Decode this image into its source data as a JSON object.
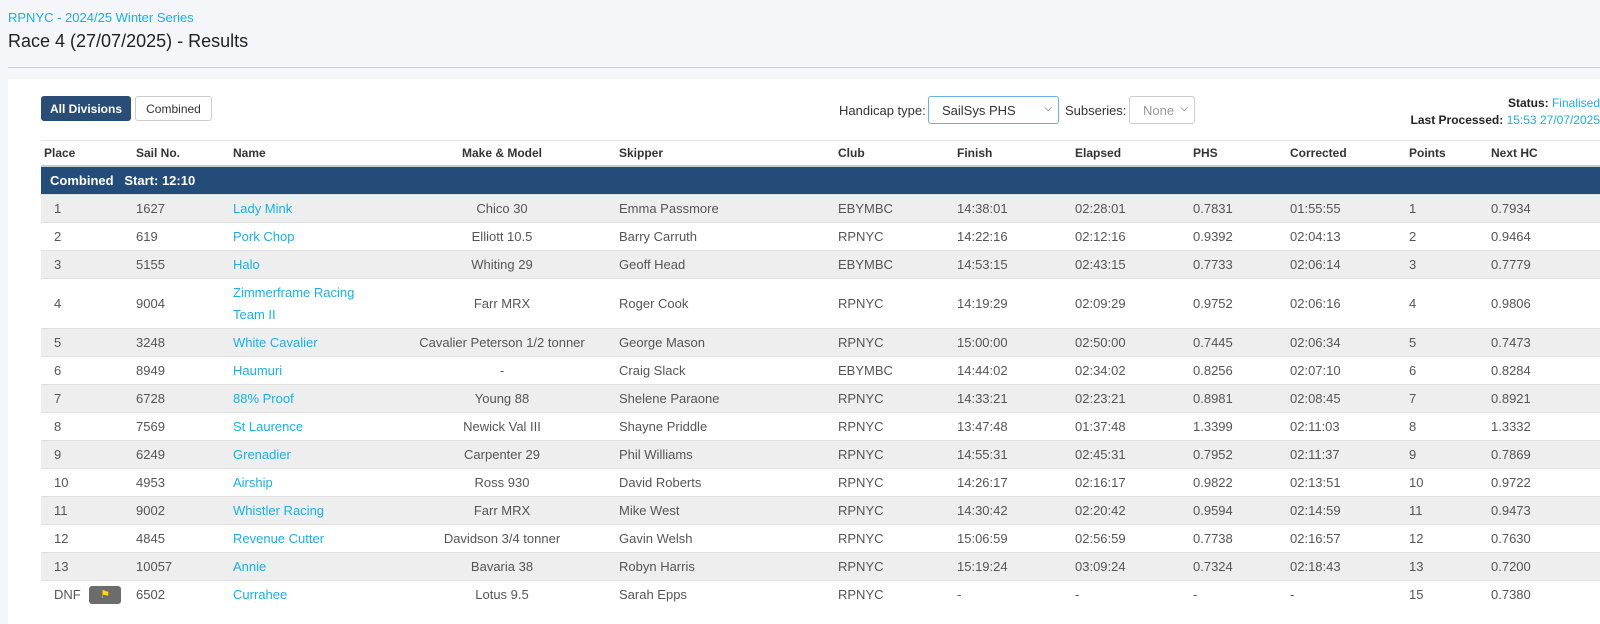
{
  "breadcrumb": "RPNYC - 2024/25 Winter Series",
  "title": "Race 4 (27/07/2025) - Results",
  "buttons": {
    "all_divisions": "All Divisions",
    "combined": "Combined"
  },
  "filters": {
    "handicap_label": "Handicap type:",
    "handicap_value": "SailSys PHS",
    "subseries_label": "Subseries:",
    "subseries_value": "None"
  },
  "status": {
    "status_label": "Status:",
    "status_value": "Finalised",
    "processed_label": "Last Processed:",
    "processed_value": "15:53 27/07/2025"
  },
  "columns": {
    "place": "Place",
    "sail": "Sail No.",
    "name": "Name",
    "make": "Make & Model",
    "skipper": "Skipper",
    "club": "Club",
    "finish": "Finish",
    "elapsed": "Elapsed",
    "phs": "PHS",
    "corrected": "Corrected",
    "points": "Points",
    "next_hc": "Next HC"
  },
  "group_header": "Combined   Start: 12:10",
  "rows": [
    {
      "place": "1",
      "sail": "1627",
      "name": "Lady Mink",
      "make": "Chico 30",
      "skipper": "Emma Passmore",
      "club": "EBYMBC",
      "finish": "14:38:01",
      "elapsed": "02:28:01",
      "phs": "0.7831",
      "corrected": "01:55:55",
      "points": "1",
      "next_hc": "0.7934"
    },
    {
      "place": "2",
      "sail": "619",
      "name": "Pork Chop",
      "make": "Elliott 10.5",
      "skipper": "Barry Carruth",
      "club": "RPNYC",
      "finish": "14:22:16",
      "elapsed": "02:12:16",
      "phs": "0.9392",
      "corrected": "02:04:13",
      "points": "2",
      "next_hc": "0.9464"
    },
    {
      "place": "3",
      "sail": "5155",
      "name": "Halo",
      "make": "Whiting 29",
      "skipper": "Geoff Head",
      "club": "EBYMBC",
      "finish": "14:53:15",
      "elapsed": "02:43:15",
      "phs": "0.7733",
      "corrected": "02:06:14",
      "points": "3",
      "next_hc": "0.7779"
    },
    {
      "place": "4",
      "sail": "9004",
      "name": "Zimmerframe Racing Team II",
      "make": "Farr MRX",
      "skipper": "Roger Cook",
      "club": "RPNYC",
      "finish": "14:19:29",
      "elapsed": "02:09:29",
      "phs": "0.9752",
      "corrected": "02:06:16",
      "points": "4",
      "next_hc": "0.9806"
    },
    {
      "place": "5",
      "sail": "3248",
      "name": "White Cavalier",
      "make": "Cavalier Peterson 1/2 tonner",
      "skipper": "George Mason",
      "club": "RPNYC",
      "finish": "15:00:00",
      "elapsed": "02:50:00",
      "phs": "0.7445",
      "corrected": "02:06:34",
      "points": "5",
      "next_hc": "0.7473"
    },
    {
      "place": "6",
      "sail": "8949",
      "name": "Haumuri",
      "make": "-",
      "skipper": "Craig Slack",
      "club": "EBYMBC",
      "finish": "14:44:02",
      "elapsed": "02:34:02",
      "phs": "0.8256",
      "corrected": "02:07:10",
      "points": "6",
      "next_hc": "0.8284"
    },
    {
      "place": "7",
      "sail": "6728",
      "name": "88% Proof",
      "make": "Young 88",
      "skipper": "Shelene Paraone",
      "club": "RPNYC",
      "finish": "14:33:21",
      "elapsed": "02:23:21",
      "phs": "0.8981",
      "corrected": "02:08:45",
      "points": "7",
      "next_hc": "0.8921"
    },
    {
      "place": "8",
      "sail": "7569",
      "name": "St Laurence",
      "make": "Newick Val III",
      "skipper": "Shayne Priddle",
      "club": "RPNYC",
      "finish": "13:47:48",
      "elapsed": "01:37:48",
      "phs": "1.3399",
      "corrected": "02:11:03",
      "points": "8",
      "next_hc": "1.3332"
    },
    {
      "place": "9",
      "sail": "6249",
      "name": "Grenadier",
      "make": "Carpenter 29",
      "skipper": "Phil Williams",
      "club": "RPNYC",
      "finish": "14:55:31",
      "elapsed": "02:45:31",
      "phs": "0.7952",
      "corrected": "02:11:37",
      "points": "9",
      "next_hc": "0.7869"
    },
    {
      "place": "10",
      "sail": "4953",
      "name": "Airship",
      "make": "Ross 930",
      "skipper": "David Roberts",
      "club": "RPNYC",
      "finish": "14:26:17",
      "elapsed": "02:16:17",
      "phs": "0.9822",
      "corrected": "02:13:51",
      "points": "10",
      "next_hc": "0.9722"
    },
    {
      "place": "11",
      "sail": "9002",
      "name": "Whistler Racing",
      "make": "Farr MRX",
      "skipper": "Mike West",
      "club": "RPNYC",
      "finish": "14:30:42",
      "elapsed": "02:20:42",
      "phs": "0.9594",
      "corrected": "02:14:59",
      "points": "11",
      "next_hc": "0.9473"
    },
    {
      "place": "12",
      "sail": "4845",
      "name": "Revenue Cutter",
      "make": "Davidson 3/4 tonner",
      "skipper": "Gavin Welsh",
      "club": "RPNYC",
      "finish": "15:06:59",
      "elapsed": "02:56:59",
      "phs": "0.7738",
      "corrected": "02:16:57",
      "points": "12",
      "next_hc": "0.7630"
    },
    {
      "place": "13",
      "sail": "10057",
      "name": "Annie",
      "make": "Bavaria 38",
      "skipper": "Robyn Harris",
      "club": "RPNYC",
      "finish": "15:19:24",
      "elapsed": "03:09:24",
      "phs": "0.7324",
      "corrected": "02:18:43",
      "points": "13",
      "next_hc": "0.7200"
    },
    {
      "place": "DNF",
      "sail": "6502",
      "name": "Currahee",
      "make": "Lotus 9.5",
      "skipper": "Sarah Epps",
      "club": "RPNYC",
      "finish": "-",
      "elapsed": "-",
      "phs": "-",
      "corrected": "-",
      "points": "15",
      "next_hc": "0.7380",
      "flag_icon": "flag-icon"
    }
  ]
}
